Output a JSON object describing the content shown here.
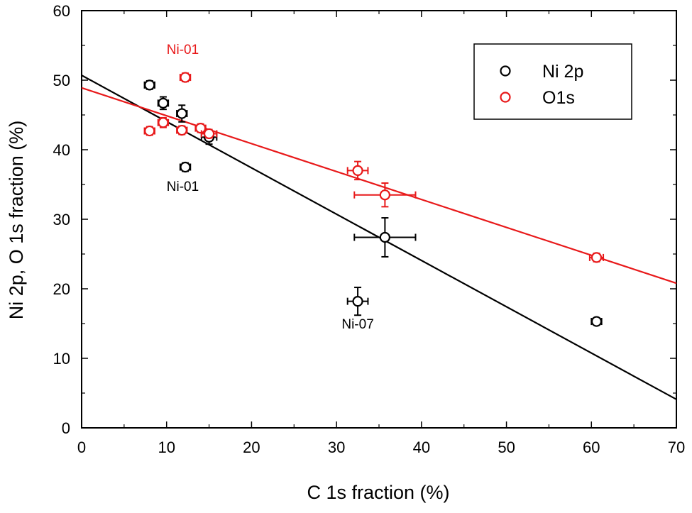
{
  "chart_data": {
    "type": "scatter",
    "xlabel": "C 1s fraction (%)",
    "ylabel": "Ni 2p, O 1s fraction (%)",
    "xlim": [
      0,
      70
    ],
    "ylim": [
      0,
      60
    ],
    "xticks": [
      0,
      10,
      20,
      30,
      40,
      50,
      60,
      70
    ],
    "yticks": [
      0,
      10,
      20,
      30,
      40,
      50,
      60
    ],
    "grid": false,
    "legend_position": "top-right",
    "series": [
      {
        "name": "Ni 2p",
        "color": "#000000",
        "points": [
          {
            "x": 8.0,
            "y": 49.3,
            "xerr": 0.6,
            "yerr": 0.6
          },
          {
            "x": 9.6,
            "y": 46.7,
            "xerr": 0.6,
            "yerr": 0.9
          },
          {
            "x": 11.8,
            "y": 45.2,
            "xerr": 0.6,
            "yerr": 1.2
          },
          {
            "x": 12.2,
            "y": 37.5,
            "xerr": 0.6,
            "yerr": 0.6
          },
          {
            "x": 15.0,
            "y": 41.8,
            "xerr": 0.9,
            "yerr": 1.0
          },
          {
            "x": 32.5,
            "y": 18.2,
            "xerr": 1.2,
            "yerr": 2.0
          },
          {
            "x": 35.7,
            "y": 27.4,
            "xerr": 3.6,
            "yerr": 2.8
          },
          {
            "x": 60.6,
            "y": 15.3,
            "xerr": 0.6,
            "yerr": 0.5
          }
        ],
        "fit": {
          "x": [
            0,
            70
          ],
          "y": [
            50.7,
            4.1
          ]
        }
      },
      {
        "name": "O1s",
        "color": "#e8191a",
        "points": [
          {
            "x": 8.0,
            "y": 42.7,
            "xerr": 0.6,
            "yerr": 0.6
          },
          {
            "x": 9.6,
            "y": 43.9,
            "xerr": 0.6,
            "yerr": 0.7
          },
          {
            "x": 11.8,
            "y": 42.8,
            "xerr": 0.6,
            "yerr": 0.6
          },
          {
            "x": 12.2,
            "y": 50.4,
            "xerr": 0.6,
            "yerr": 0.6
          },
          {
            "x": 14.0,
            "y": 43.1,
            "xerr": 0.6,
            "yerr": 0.6
          },
          {
            "x": 15.0,
            "y": 42.3,
            "xerr": 0.9,
            "yerr": 0.6
          },
          {
            "x": 32.5,
            "y": 37.0,
            "xerr": 1.2,
            "yerr": 1.3
          },
          {
            "x": 35.7,
            "y": 33.5,
            "xerr": 3.6,
            "yerr": 1.7
          },
          {
            "x": 60.6,
            "y": 24.5,
            "xerr": 0.8,
            "yerr": 0.6
          }
        ],
        "fit": {
          "x": [
            0,
            70
          ],
          "y": [
            48.9,
            20.8
          ]
        }
      }
    ],
    "annotations": [
      {
        "text": "Ni-01",
        "x": 11.9,
        "y": 53.8,
        "color": "#e8191a"
      },
      {
        "text": "Ni-01",
        "x": 11.9,
        "y": 34.1,
        "color": "#000000"
      },
      {
        "text": "Ni-07",
        "x": 32.5,
        "y": 14.3,
        "color": "#000000"
      }
    ]
  }
}
